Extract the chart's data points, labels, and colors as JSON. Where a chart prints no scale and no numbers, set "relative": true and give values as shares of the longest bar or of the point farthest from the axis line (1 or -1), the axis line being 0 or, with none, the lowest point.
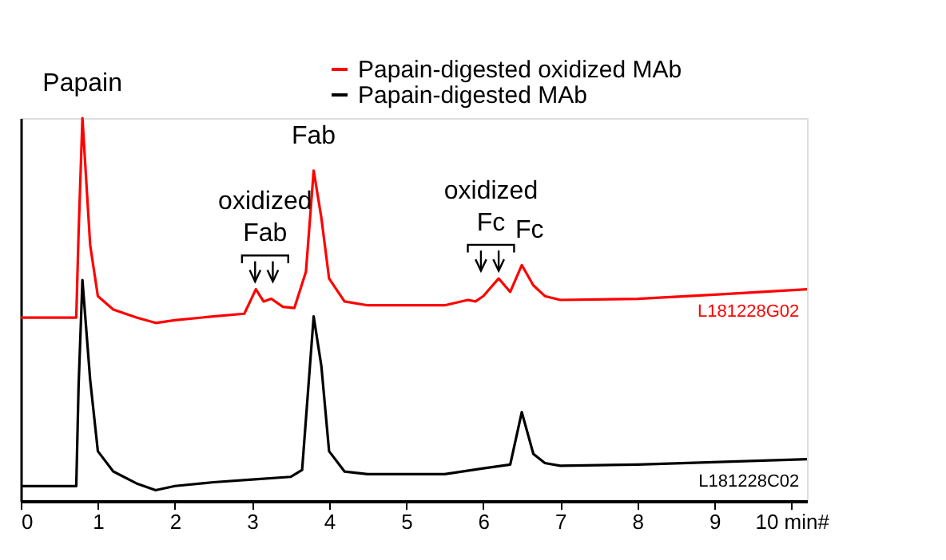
{
  "chart_data": {
    "type": "line",
    "relative": true,
    "legend": "top right",
    "grid": false,
    "marker": "none",
    "line_style": "solid",
    "xlim": [
      0,
      10.2
    ],
    "xticks": [
      0,
      1,
      2,
      3,
      4,
      5,
      6,
      7,
      8,
      9,
      {
        "value": 10,
        "label": "10 min#"
      }
    ],
    "series": [
      {
        "name": "Papain-digested oxidized MAb",
        "color": "#ff0000",
        "x": [
          0,
          0.72,
          0.75,
          0.8,
          0.9,
          1.0,
          1.2,
          1.5,
          1.75,
          2.0,
          2.5,
          2.9,
          3.05,
          3.15,
          3.25,
          3.4,
          3.55,
          3.7,
          3.8,
          3.9,
          4.0,
          4.2,
          4.5,
          5.0,
          5.5,
          5.8,
          5.9,
          6.0,
          6.2,
          6.35,
          6.5,
          6.65,
          6.8,
          7.0,
          8.0,
          9.0,
          10.2
        ],
        "values": [
          0.479,
          0.479,
          0.7,
          1.0,
          0.669,
          0.535,
          0.5,
          0.479,
          0.465,
          0.472,
          0.482,
          0.489,
          0.553,
          0.521,
          0.528,
          0.507,
          0.504,
          0.599,
          0.863,
          0.739,
          0.581,
          0.521,
          0.511,
          0.511,
          0.511,
          0.525,
          0.521,
          0.535,
          0.581,
          0.546,
          0.616,
          0.563,
          0.535,
          0.525,
          0.528,
          0.539,
          0.553
        ]
      },
      {
        "name": "Papain-digested MAb",
        "color": "#000000",
        "x": [
          0,
          0.72,
          0.75,
          0.8,
          0.9,
          1.0,
          1.2,
          1.5,
          1.75,
          2.0,
          2.5,
          3.0,
          3.5,
          3.65,
          3.8,
          3.9,
          4.0,
          4.2,
          4.5,
          5.0,
          5.5,
          6.0,
          6.35,
          6.5,
          6.65,
          6.8,
          7.0,
          8.0,
          10.2
        ],
        "values": [
          0.039,
          0.039,
          0.3,
          0.577,
          0.317,
          0.13,
          0.077,
          0.046,
          0.028,
          0.039,
          0.049,
          0.056,
          0.063,
          0.081,
          0.482,
          0.352,
          0.13,
          0.077,
          0.07,
          0.07,
          0.07,
          0.085,
          0.095,
          0.232,
          0.123,
          0.099,
          0.092,
          0.095,
          0.109
        ]
      }
    ],
    "annotations": [
      {
        "text": "Papain",
        "x": 0.8,
        "y": 1.0
      },
      {
        "text": "oxidized Fab",
        "x": 3.17,
        "y": 0.553
      },
      {
        "text": "Fab",
        "x": 3.8,
        "y": 0.863
      },
      {
        "text": "oxidized Fc",
        "x": 6.1,
        "y": 0.581
      },
      {
        "text": "Fc",
        "x": 6.6,
        "y": 0.616
      },
      "L181228G02",
      "L181228C02"
    ]
  }
}
